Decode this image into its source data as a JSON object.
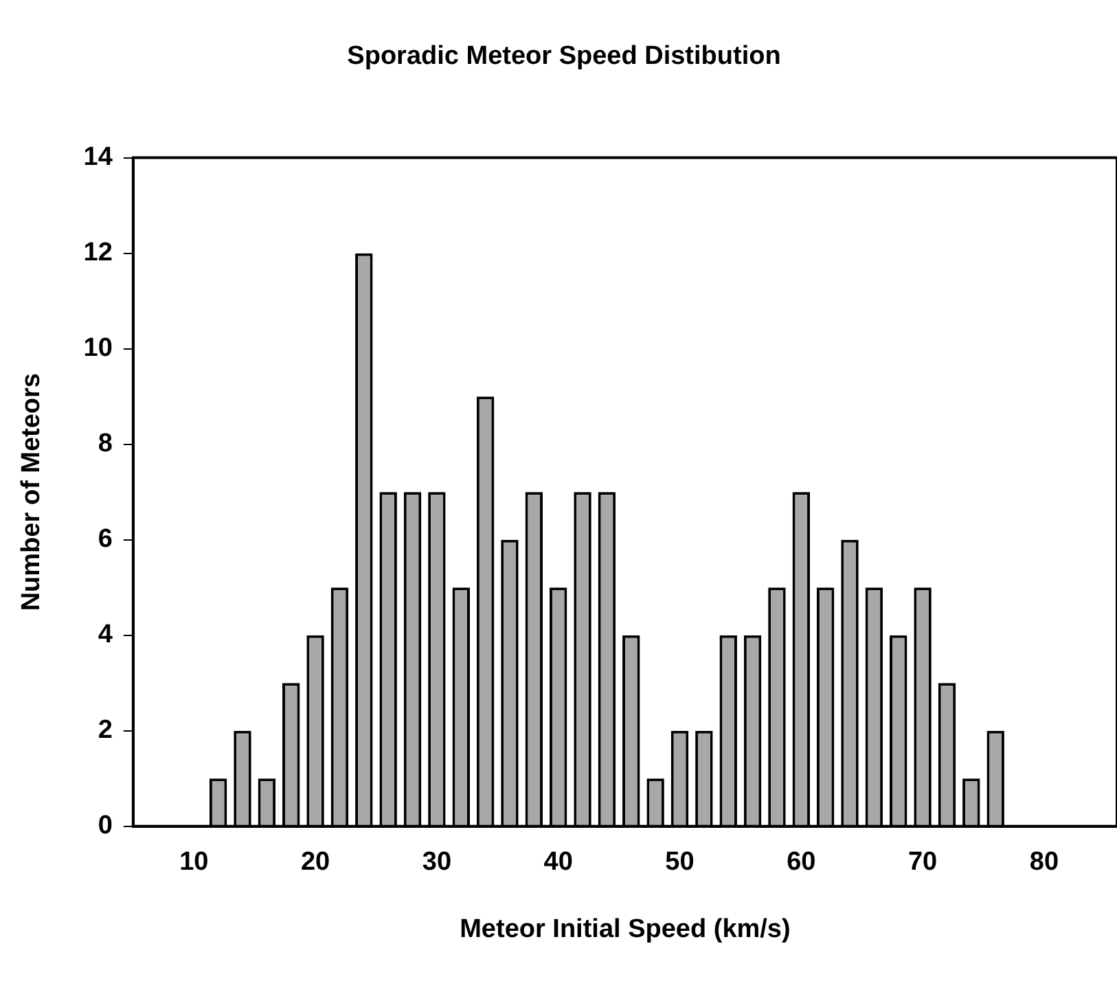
{
  "chart_data": {
    "type": "bar",
    "title": "Sporadic Meteor Speed Distibution",
    "xlabel": "Meteor Initial Speed (km/s)",
    "ylabel": "Number of Meteors",
    "x": [
      12,
      14,
      16,
      18,
      20,
      22,
      24,
      26,
      28,
      30,
      32,
      34,
      36,
      38,
      40,
      42,
      44,
      46,
      48,
      50,
      52,
      54,
      56,
      58,
      60,
      62,
      64,
      66,
      68,
      70,
      72,
      74,
      76
    ],
    "values": [
      1,
      2,
      1,
      3,
      4,
      5,
      12,
      7,
      7,
      7,
      5,
      9,
      6,
      7,
      5,
      7,
      7,
      4,
      1,
      2,
      2,
      4,
      4,
      5,
      7,
      5,
      6,
      5,
      4,
      5,
      3,
      1,
      2
    ],
    "color": "#a8a8a8",
    "xlim": [
      5,
      86
    ],
    "xticks": [
      10,
      20,
      30,
      40,
      50,
      60,
      70,
      80
    ],
    "ylim": [
      0,
      14
    ],
    "yticks": [
      0,
      2,
      4,
      6,
      8,
      10,
      12,
      14
    ],
    "grid": false,
    "legend": false
  }
}
